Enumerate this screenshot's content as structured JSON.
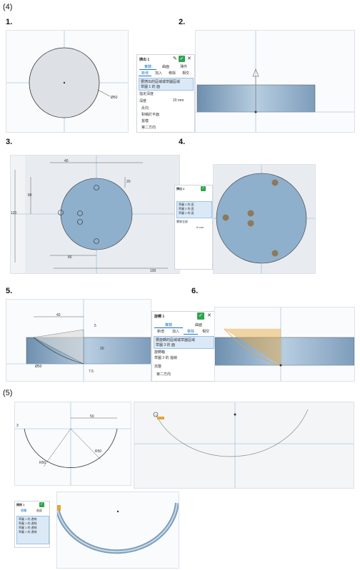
{
  "headers": {
    "part4": "(4)",
    "part5": "(5)"
  },
  "steps": {
    "s1": "1.",
    "s2": "2.",
    "s3": "3.",
    "s4": "4.",
    "s5": "5.",
    "s6": "6."
  },
  "dims": {
    "s1_dia": "Ø50",
    "s3_40": "40",
    "s3_20": "20",
    "s3_120": "120",
    "s3_80": "80",
    "s3_100": "100",
    "s5_40": "40",
    "s5_5": "5",
    "s5_20": "20",
    "s5_75": "7.5",
    "s5_dia": "Ø50",
    "p5_50": "50",
    "p5_3": "3",
    "p5_r": "R50",
    "p5_r2": "R50"
  },
  "panel2": {
    "title": "擠出 1",
    "tab_solid": "實體",
    "tab_surface": "曲面",
    "tab_thin": "薄件",
    "op_new": "新增",
    "op_add": "加入",
    "op_remove": "移除",
    "op_intersect": "相交",
    "select_hint": "要擠出的區域或草圖區域",
    "selected": "草圖 1 的 面",
    "depth_type": "指定深度",
    "depth_label": "深度",
    "depth_value": "20 mm",
    "opt1": "反向",
    "opt2": "對稱於平面",
    "opt3": "拔模",
    "opt4": "第二方向"
  },
  "panel4": {
    "title": "擠出 2",
    "sel1": "草圖 2 的 面",
    "sel2": "草圖 2 的 面",
    "sel3": "草圖 2 的 面",
    "depth_type": "貫穿全部",
    "depth_value": "5 mm"
  },
  "panel6": {
    "title": "旋轉 1",
    "tab_solid": "實體",
    "tab_surface": "曲面",
    "op_new": "新增",
    "op_add": "加入",
    "op_remove": "移除",
    "op_intersect": "相交",
    "select_hint": "要旋轉的區域或草圖區域",
    "selected": "草圖 3 的 面",
    "axis_label": "旋轉軸",
    "axis_value": "草圖 3 的 邊線",
    "type_label": "完整",
    "opt1": "第二方向"
  },
  "panel5b": {
    "title": "掃掠 1",
    "tab_solid": "實體",
    "tab_surface": "曲面",
    "rows": [
      "草圖 1 的 邊線",
      "草圖 1 的 邊線",
      "草圖 1 的 邊線",
      "草圖 1 的 邊線"
    ]
  },
  "colors": {
    "accent": "#2ea44f",
    "part": "#8fb0cc",
    "profile": "#e6a53a"
  }
}
